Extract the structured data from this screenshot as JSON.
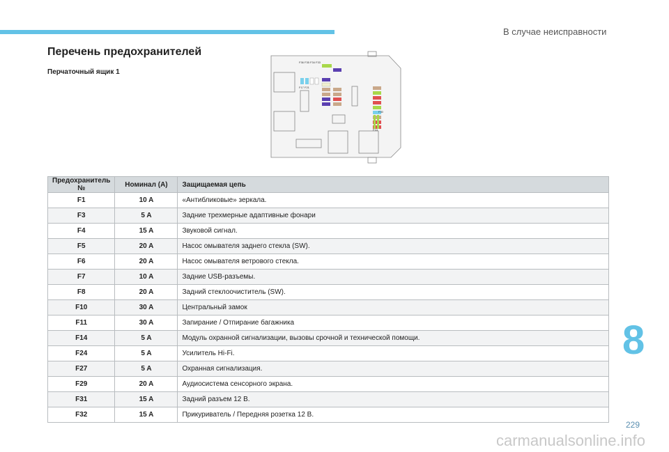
{
  "header": {
    "section": "В случае неисправности"
  },
  "title": "Перечень предохранителей",
  "subtitle": "Перчаточный ящик 1",
  "diagram": {
    "labels": [
      "F36 F35 F34 F33",
      "F17 F21",
      "F30",
      "F14"
    ]
  },
  "table": {
    "columns": [
      "Предохранитель №",
      "Номинал (A)",
      "Защищаемая цепь"
    ],
    "rows": [
      [
        "F1",
        "10 A",
        "«Антибликовые» зеркала."
      ],
      [
        "F3",
        "5 A",
        "Задние трехмерные адаптивные фонари"
      ],
      [
        "F4",
        "15 A",
        "Звуковой сигнал."
      ],
      [
        "F5",
        "20 A",
        "Насос омывателя заднего стекла (SW)."
      ],
      [
        "F6",
        "20 A",
        "Насос омывателя ветрового стекла."
      ],
      [
        "F7",
        "10 A",
        "Задние USB-разъемы."
      ],
      [
        "F8",
        "20 A",
        "Задний стеклоочиститель (SW)."
      ],
      [
        "F10",
        "30 A",
        "Центральный замок"
      ],
      [
        "F11",
        "30 A",
        "Запирание / Отпирание багажника"
      ],
      [
        "F14",
        "5 A",
        "Модуль охранной сигнализации, вызовы срочной и технической помощи."
      ],
      [
        "F24",
        "5 A",
        "Усилитель Hi-Fi."
      ],
      [
        "F27",
        "5 A",
        "Охранная сигнализация."
      ],
      [
        "F29",
        "20 A",
        "Аудиосистема сенсорного экрана."
      ],
      [
        "F31",
        "15 A",
        "Задний разъем 12 В."
      ],
      [
        "F32",
        "15 A",
        "Прикуриватель / Передняя розетка 12 В."
      ]
    ]
  },
  "chapter": "8",
  "page_number": "229",
  "watermark": "carmanualsonline.info"
}
